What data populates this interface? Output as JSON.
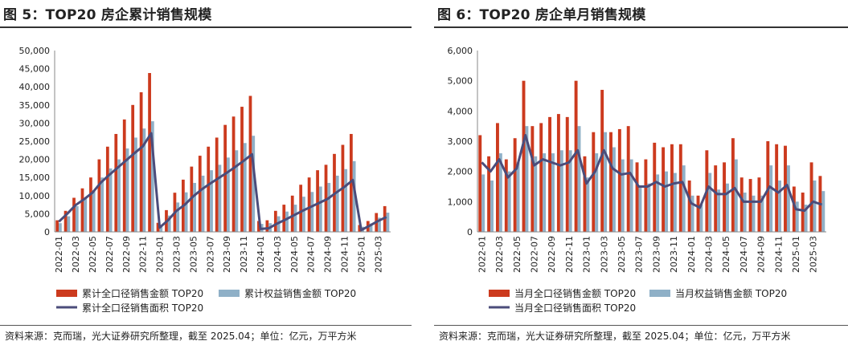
{
  "charts": [
    {
      "title": "图 5：TOP20 房企累计销售规模",
      "source": "资料来源：克而瑞，光大证券研究所整理，截至 2025.04；单位：亿元，万平方米"
    },
    {
      "title": "图 6：TOP20 房企单月销售规模",
      "source": "资料来源：克而瑞，光大证券研究所整理，截至 2025.04；单位：亿元，万平方米"
    }
  ],
  "colors": {
    "red": "#CC3A1E",
    "blue": "#8FB0C7",
    "line": "#4B4C7A",
    "axis": "#888888"
  },
  "chart_data": [
    {
      "type": "bar",
      "title": "",
      "x": [
        "2022-01",
        "2022-02",
        "2022-03",
        "2022-04",
        "2022-05",
        "2022-06",
        "2022-07",
        "2022-08",
        "2022-09",
        "2022-10",
        "2022-11",
        "2022-12",
        "2023-01",
        "2023-02",
        "2023-03",
        "2023-04",
        "2023-05",
        "2023-06",
        "2023-07",
        "2023-08",
        "2023-09",
        "2023-10",
        "2023-11",
        "2023-12",
        "2024-01",
        "2024-02",
        "2024-03",
        "2024-04",
        "2024-05",
        "2024-06",
        "2024-07",
        "2024-08",
        "2024-09",
        "2024-10",
        "2024-11",
        "2024-12",
        "2025-01",
        "2025-02",
        "2025-03",
        "2025-04"
      ],
      "xticks": [
        "2022-01",
        "2022-03",
        "2022-05",
        "2022-07",
        "2022-09",
        "2022-11",
        "2023-01",
        "2023-03",
        "2023-05",
        "2023-07",
        "2023-09",
        "2023-11",
        "2024-01",
        "2024-03",
        "2024-05",
        "2024-07",
        "2024-09",
        "2024-11",
        "2025-01",
        "2025-03"
      ],
      "ylim": [
        0,
        50000
      ],
      "yticks": [
        "0",
        "5,000",
        "10,000",
        "15,000",
        "20,000",
        "25,000",
        "30,000",
        "35,000",
        "40,000",
        "45,000",
        "50,000"
      ],
      "series": [
        {
          "name": "累计全口径销售金额 TOP20",
          "kind": "bar",
          "values": [
            3200,
            5800,
            9400,
            12000,
            15000,
            20000,
            23500,
            27000,
            31000,
            35000,
            38500,
            43800,
            2500,
            6000,
            10800,
            14400,
            18000,
            21000,
            23500,
            26000,
            29500,
            31800,
            34500,
            37500,
            3000,
            3200,
            5800,
            7500,
            10000,
            13000,
            15000,
            17000,
            18500,
            21500,
            24000,
            27000,
            1900,
            3000,
            5200,
            7100
          ]
        },
        {
          "name": "累计权益销售金额 TOP20",
          "kind": "bar",
          "values": [
            2400,
            4300,
            7100,
            9200,
            11500,
            15000,
            17500,
            20000,
            23000,
            26000,
            28500,
            30500,
            1900,
            4500,
            8100,
            10900,
            13500,
            15500,
            17000,
            18500,
            20500,
            22500,
            24500,
            26500,
            2200,
            2400,
            4300,
            5600,
            7500,
            9700,
            11000,
            12500,
            13500,
            15500,
            17300,
            19500,
            1400,
            2300,
            3900,
            5300
          ]
        },
        {
          "name": "累计全口径销售面积 TOP20",
          "kind": "line",
          "values": [
            2800,
            5000,
            7400,
            9000,
            10800,
            13600,
            15700,
            17700,
            19700,
            21700,
            23600,
            27200,
            1200,
            3200,
            5800,
            7500,
            9800,
            11700,
            13300,
            14800,
            16300,
            17900,
            19600,
            21400,
            800,
            1000,
            2300,
            3400,
            4600,
            5800,
            6900,
            8000,
            9100,
            10800,
            12400,
            14300,
            500,
            1700,
            3000,
            4100
          ]
        }
      ]
    },
    {
      "type": "bar",
      "title": "",
      "x": [
        "2022-01",
        "2022-02",
        "2022-03",
        "2022-04",
        "2022-05",
        "2022-06",
        "2022-07",
        "2022-08",
        "2022-09",
        "2022-10",
        "2022-11",
        "2022-12",
        "2023-01",
        "2023-02",
        "2023-03",
        "2023-04",
        "2023-05",
        "2023-06",
        "2023-07",
        "2023-08",
        "2023-09",
        "2023-10",
        "2023-11",
        "2023-12",
        "2024-01",
        "2024-02",
        "2024-03",
        "2024-04",
        "2024-05",
        "2024-06",
        "2024-07",
        "2024-08",
        "2024-09",
        "2024-10",
        "2024-11",
        "2024-12",
        "2025-01",
        "2025-02",
        "2025-03",
        "2025-04"
      ],
      "xticks": [
        "2022-01",
        "2022-03",
        "2022-05",
        "2022-07",
        "2022-09",
        "2022-11",
        "2023-01",
        "2023-03",
        "2023-05",
        "2023-07",
        "2023-09",
        "2023-11",
        "2024-01",
        "2024-03",
        "2024-05",
        "2024-07",
        "2024-09",
        "2024-11",
        "2025-01",
        "2025-03"
      ],
      "ylim": [
        0,
        6000
      ],
      "yticks": [
        "0",
        "1,000",
        "2,000",
        "3,000",
        "4,000",
        "5,000",
        "6,000"
      ],
      "series": [
        {
          "name": "当月全口径销售金额 TOP20",
          "kind": "bar",
          "values": [
            3200,
            2500,
            3600,
            2400,
            3100,
            5000,
            3500,
            3600,
            3800,
            3900,
            3800,
            5000,
            2500,
            3300,
            4700,
            3300,
            3400,
            3500,
            2300,
            2400,
            2950,
            2800,
            2900,
            2900,
            1700,
            1200,
            2700,
            2200,
            2300,
            3100,
            1800,
            1750,
            1800,
            3000,
            2900,
            2850,
            1500,
            1300,
            2300,
            1850
          ]
        },
        {
          "name": "当月权益销售金额 TOP20",
          "kind": "bar",
          "values": [
            1900,
            1700,
            2600,
            2000,
            2300,
            3500,
            2500,
            2600,
            2600,
            2700,
            2700,
            3500,
            1800,
            2600,
            3300,
            2800,
            2400,
            2400,
            1500,
            1600,
            1900,
            2000,
            1950,
            2200,
            1200,
            900,
            1950,
            1400,
            1600,
            2400,
            1300,
            1200,
            1200,
            2200,
            1700,
            2200,
            1000,
            900,
            1700,
            1350
          ]
        },
        {
          "name": "当月全口径销售面积 TOP20",
          "kind": "line",
          "values": [
            2300,
            2000,
            2400,
            1800,
            2100,
            3200,
            2200,
            2400,
            2300,
            2200,
            2300,
            2700,
            1600,
            2000,
            2700,
            2100,
            1900,
            1950,
            1500,
            1500,
            1650,
            1500,
            1600,
            1650,
            950,
            800,
            1500,
            1250,
            1250,
            1450,
            1000,
            1000,
            1000,
            1500,
            1300,
            1550,
            750,
            700,
            1000,
            900
          ]
        }
      ]
    }
  ]
}
